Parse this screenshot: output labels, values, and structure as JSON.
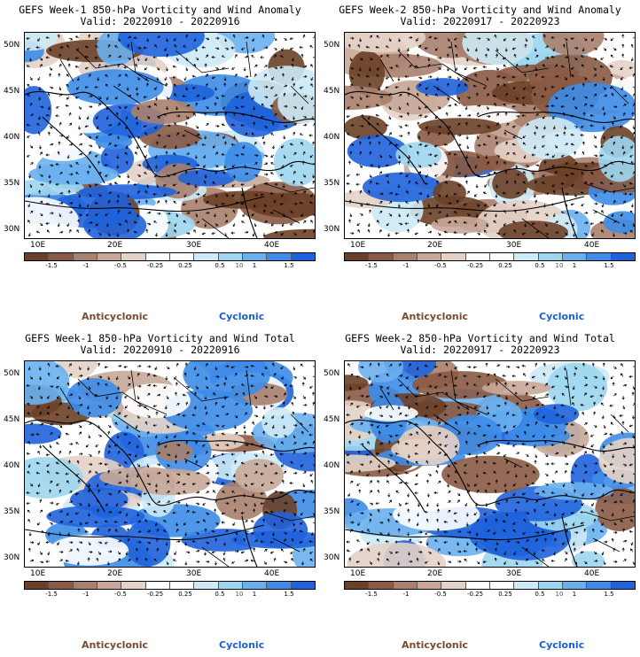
{
  "panels": [
    {
      "title": "GEFS Week-1 850-hPa Vorticity and Wind Anomaly",
      "valid": "Valid: 20220910 - 20220916",
      "seed": 11,
      "bias": 0.0
    },
    {
      "title": "GEFS Week-2 850-hPa Vorticity and Wind Anomaly",
      "valid": "Valid: 20220917 - 20220923",
      "seed": 23,
      "bias": -0.15
    },
    {
      "title": "GEFS Week-1 850-hPa Vorticity and Wind Total",
      "valid": "Valid: 20220910 - 20220916",
      "seed": 37,
      "bias": 0.1
    },
    {
      "title": "GEFS Week-2 850-hPa Vorticity and Wind Total",
      "valid": "Valid: 20220917 - 20220923",
      "seed": 53,
      "bias": 0.1
    }
  ],
  "axes": {
    "lat_labels": [
      "50N",
      "45N",
      "40N",
      "35N",
      "30N"
    ],
    "lon_labels": [
      "10E",
      "20E",
      "30E",
      "40E"
    ]
  },
  "colorbar": {
    "labels": [
      "-1.5",
      "-1",
      "-0.5",
      "-0.25",
      "0.25",
      "0.5",
      "1",
      "1.5"
    ],
    "exponent": "10",
    "colors": [
      "#6b4028",
      "#8a5a44",
      "#a9806d",
      "#c8a898",
      "#e4d2c6",
      "#ffffff",
      "#ffffff",
      "#cdeaf6",
      "#9dd6f0",
      "#6ab0ee",
      "#3d8ce8",
      "#1f63db"
    ]
  },
  "legend": {
    "anticyclonic": "Anticyclonic",
    "cyclonic": "Cyclonic"
  }
}
